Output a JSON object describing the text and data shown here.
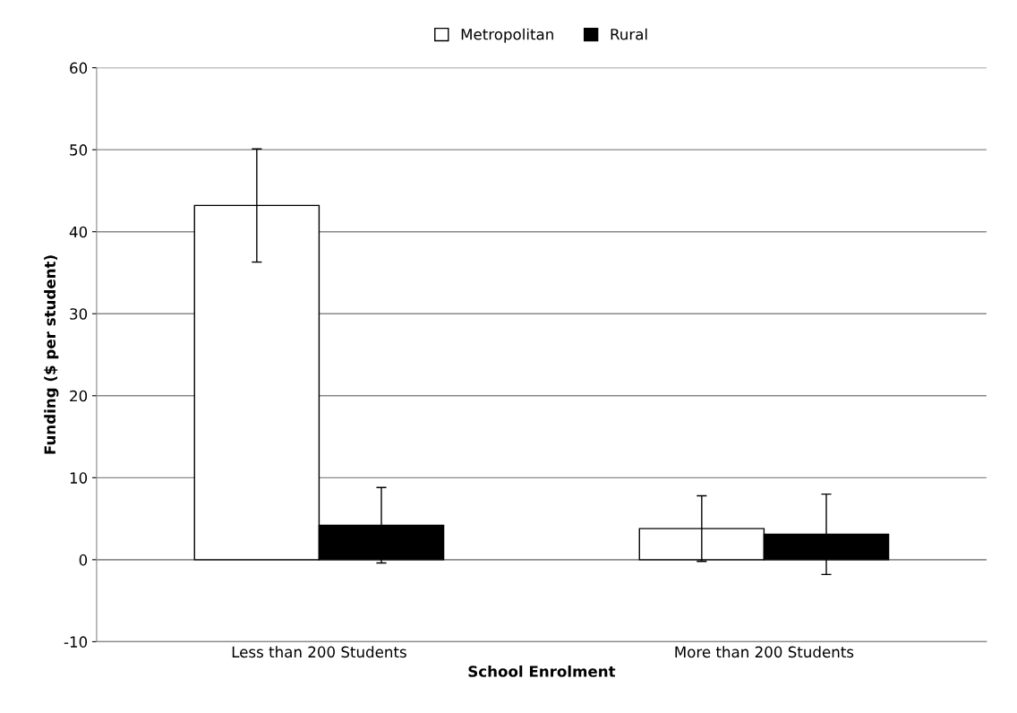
{
  "chart_data": {
    "type": "bar",
    "xlabel": "School Enrolment",
    "ylabel": "Funding ($ per student)",
    "categories": [
      "Less than 200 Students",
      "More than 200 Students"
    ],
    "series": [
      {
        "name": "Metropolitan",
        "color": "#ffffff",
        "values": [
          43.2,
          3.8
        ],
        "errors": [
          6.9,
          4.0
        ]
      },
      {
        "name": "Rural",
        "color": "#000000",
        "values": [
          4.2,
          3.1
        ],
        "errors": [
          4.6,
          4.9
        ]
      }
    ],
    "ylim": [
      -10,
      60
    ],
    "yticks": [
      -10,
      0,
      10,
      20,
      30,
      40,
      50,
      60
    ],
    "grid": "y",
    "legend": "top"
  }
}
